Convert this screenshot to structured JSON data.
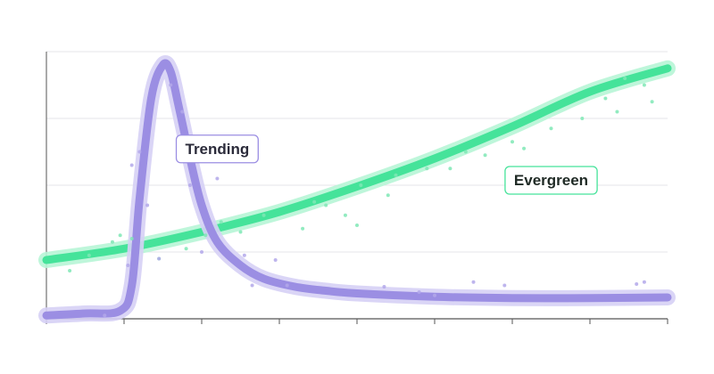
{
  "colors": {
    "background": "#ffffff",
    "grid": "#e6e6ea",
    "axis": "#555555",
    "trending_line": "#9b8ee3",
    "trending_glow": "#d6d0f5",
    "trending_dot": "#b3a8ea",
    "trending_label_text": "#2b2b3a",
    "trending_label_border": "#9b8ee3",
    "evergreen_line": "#45e39a",
    "evergreen_glow": "#b7f5d6",
    "evergreen_dot": "#7fe7b5",
    "evergreen_label_text": "#1f2a25",
    "evergreen_label_border": "#45e39a"
  },
  "chart_data": {
    "type": "line",
    "title": "",
    "xlabel": "",
    "ylabel": "",
    "xlim": [
      0,
      8
    ],
    "ylim": [
      0,
      4
    ],
    "x_ticks": [
      0,
      1,
      2,
      3,
      4,
      5,
      6,
      7,
      8
    ],
    "y_gridlines": [
      1,
      2,
      3,
      4
    ],
    "grid": true,
    "legend": "none",
    "series": [
      {
        "name": "Trending",
        "color": "#9b8ee3",
        "curve_x": [
          0,
          0.5,
          0.95,
          1.1,
          1.2,
          1.35,
          1.5,
          1.6,
          1.7,
          1.85,
          2.0,
          2.2,
          2.5,
          2.8,
          3.2,
          3.6,
          4.0,
          5.0,
          6.0,
          7.0,
          8.0
        ],
        "curve_y": [
          0.05,
          0.08,
          0.12,
          0.5,
          1.8,
          3.3,
          3.8,
          3.7,
          3.2,
          2.4,
          1.7,
          1.15,
          0.8,
          0.6,
          0.48,
          0.42,
          0.38,
          0.33,
          0.31,
          0.31,
          0.32
        ],
        "label": {
          "text": "Trending",
          "x": 2.2,
          "y": 2.55
        },
        "points_x": [
          0.75,
          1.05,
          1.1,
          1.2,
          1.3,
          1.45,
          1.6,
          1.75,
          1.85,
          2.0,
          2.2,
          2.55,
          2.65,
          2.95,
          3.1,
          4.8,
          4.35,
          5.0,
          5.5,
          5.9,
          7.6,
          7.7
        ],
        "points_y": [
          0.05,
          0.8,
          2.3,
          2.5,
          1.7,
          0.9,
          3.5,
          3.1,
          2.0,
          1.0,
          2.1,
          0.95,
          0.5,
          0.88,
          0.5,
          0.4,
          0.48,
          0.35,
          0.55,
          0.5,
          0.52,
          0.55
        ]
      },
      {
        "name": "Evergreen",
        "color": "#45e39a",
        "curve_x": [
          0,
          1,
          2,
          3,
          4,
          5,
          6,
          7,
          8
        ],
        "curve_y": [
          0.88,
          1.05,
          1.3,
          1.6,
          1.98,
          2.4,
          2.88,
          3.4,
          3.75
        ],
        "label": {
          "text": "Evergreen",
          "x": 6.5,
          "y": 2.08
        },
        "points_x": [
          0.3,
          0.55,
          0.85,
          0.95,
          1.1,
          1.45,
          1.8,
          2.05,
          2.25,
          2.5,
          2.8,
          3.3,
          3.45,
          3.6,
          3.85,
          4.0,
          4.05,
          4.4,
          4.5,
          4.9,
          5.2,
          5.4,
          5.65,
          6.0,
          6.15,
          6.5,
          6.9,
          7.2,
          7.35,
          7.45,
          7.7,
          7.8
        ],
        "points_y": [
          0.72,
          0.95,
          1.15,
          1.25,
          1.2,
          0.9,
          1.05,
          1.25,
          1.45,
          1.3,
          1.55,
          1.35,
          1.75,
          1.7,
          1.55,
          1.4,
          2.0,
          1.85,
          2.15,
          2.25,
          2.25,
          2.5,
          2.45,
          2.65,
          2.55,
          2.85,
          3.0,
          3.3,
          3.1,
          3.6,
          3.5,
          3.25
        ]
      }
    ]
  }
}
